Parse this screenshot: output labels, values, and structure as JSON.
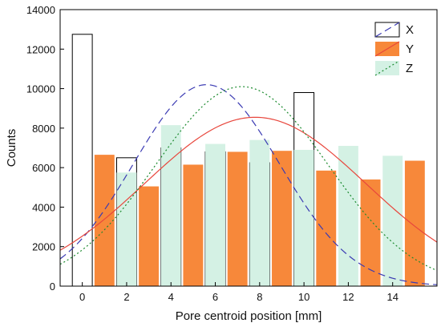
{
  "chart_data": {
    "type": "bar",
    "xlabel": "Pore centroid position [mm]",
    "ylabel": "Counts",
    "xlim": [
      -1,
      16
    ],
    "ylim": [
      0,
      14000
    ],
    "xticks": [
      0,
      2,
      4,
      6,
      8,
      10,
      12,
      14
    ],
    "yticks": [
      0,
      2000,
      4000,
      6000,
      8000,
      10000,
      12000,
      14000
    ],
    "grid": false,
    "legend_position": "top-right",
    "bar_width": 0.9,
    "series": [
      {
        "name": "X",
        "color": "#000000",
        "fill": "#ffffff",
        "style": "outline",
        "x": [
          0,
          2,
          4,
          6,
          8,
          10
        ],
        "values": [
          12750,
          6500,
          7000,
          6800,
          6250,
          9800
        ]
      },
      {
        "name": "Y",
        "color": "#f7883a",
        "fill": "#f7883a",
        "style": "filled",
        "x": [
          1,
          3,
          5,
          7,
          9,
          11,
          13,
          15
        ],
        "values": [
          6650,
          5050,
          6150,
          6800,
          6850,
          5850,
          5400,
          6350
        ]
      },
      {
        "name": "Z",
        "color": "#cdeee0",
        "fill": "#d4f1e4",
        "style": "filled",
        "x": [
          2,
          4,
          6,
          8,
          10,
          12,
          14
        ],
        "values": [
          5750,
          8150,
          7200,
          7400,
          6900,
          7100,
          6600
        ]
      }
    ],
    "fit_curves": [
      {
        "series": "X",
        "type": "gaussian",
        "amplitude": 10200,
        "mean": 5.6,
        "sigma": 3.3,
        "color": "#3b3bb3",
        "dash": "long-dash"
      },
      {
        "series": "Y",
        "type": "gaussian",
        "amplitude": 8550,
        "mean": 7.8,
        "sigma": 5.0,
        "color": "#e8463c",
        "dash": "solid"
      },
      {
        "series": "Z",
        "type": "gaussian",
        "amplitude": 10100,
        "mean": 7.2,
        "sigma": 3.9,
        "color": "#1b8a2e",
        "dash": "dotted"
      }
    ]
  }
}
